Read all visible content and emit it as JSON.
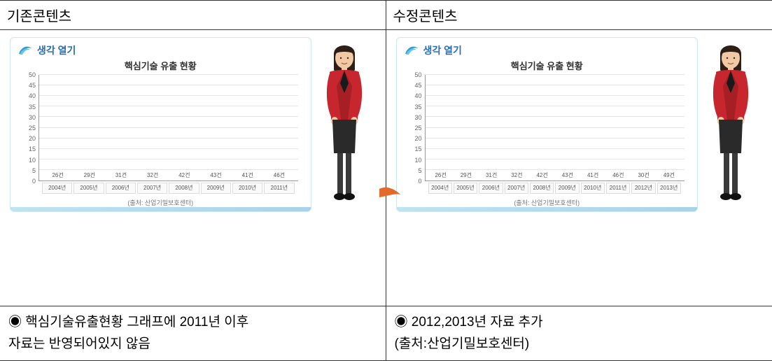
{
  "headers": {
    "left": "기존콘텐츠",
    "right": "수정콘텐츠"
  },
  "card_header": "생각 열기",
  "card_header_color": "#2a6fb5",
  "chart_common": {
    "title": "핵심기술 유출 현황",
    "ylabel_fontsize": 9,
    "ylim": [
      0,
      50
    ],
    "ytick_step": 5,
    "grid_color": "#e5e5e5",
    "axis_color": "#999999",
    "bar_color": "#a4d233",
    "background_color": "#ffffff",
    "value_suffix": "건",
    "category_suffix": "년",
    "bar_width": 0.7,
    "title_fontsize": 13
  },
  "chart_left": {
    "type": "bar",
    "categories": [
      "2004",
      "2005",
      "2006",
      "2007",
      "2008",
      "2009",
      "2010",
      "2011"
    ],
    "values": [
      26,
      29,
      31,
      32,
      42,
      43,
      41,
      46
    ],
    "source": "(출처: 산업기밀보호센터)"
  },
  "chart_right": {
    "type": "bar",
    "categories": [
      "2004",
      "2005",
      "2006",
      "2007",
      "2008",
      "2009",
      "2010",
      "2011",
      "2012",
      "2013"
    ],
    "values": [
      26,
      29,
      31,
      32,
      42,
      43,
      41,
      46,
      30,
      49
    ],
    "source": "(출처: 산업기밀보호센터)"
  },
  "captions": {
    "left": "◉  핵심기술유출현황  그래프에  2011년  이후\n자료는  반영되어있지  않음",
    "right": "◉ 2012,2013년  자료 추가\n(출처:산업기밀보호센터)"
  },
  "presenter": {
    "jacket_color": "#c8262e",
    "jacket_shadow": "#8e1a20",
    "blouse_color": "#1a1a1a",
    "skirt_color": "#2a2a2a",
    "skin_color": "#f1c9a5",
    "hair_color": "#2d1f15",
    "legs_color": "#3a3a3a",
    "shoe_color": "#111111"
  },
  "swoosh_color": "#e36a2d"
}
